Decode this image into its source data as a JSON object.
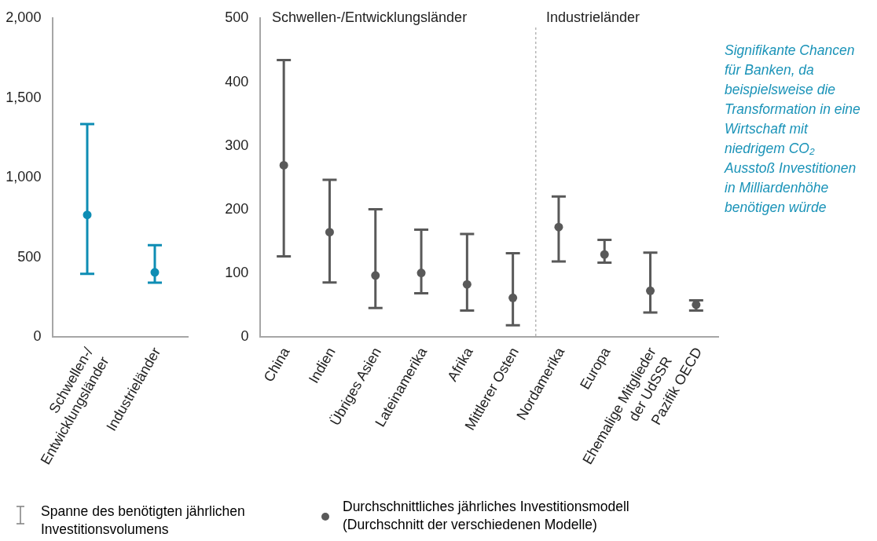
{
  "chart_data": [
    {
      "type": "scatter",
      "categories": [
        "Schwellen-/\nEntwicklungsländer",
        "Industrieländer"
      ],
      "marker": "circle",
      "grid": false,
      "series": [
        {
          "color": "#0e8db4",
          "values": [
            760,
            400
          ],
          "errors": [
            [
              390,
              1330
            ],
            [
              335,
              570
            ]
          ]
        }
      ],
      "ylim": [
        0,
        2000
      ],
      "yticks": [
        0,
        500,
        {
          "value": 1000,
          "label": "1,000"
        },
        {
          "value": 1500,
          "label": "1,500"
        },
        {
          "value": 2000,
          "label": "2,000"
        }
      ]
    },
    {
      "type": "scatter",
      "categories": [
        "China",
        "Indien",
        "Übriges Asien",
        "Lateinamerika",
        "Afrika",
        "Mittlerer Osten",
        "Nordamerika",
        "Europa",
        "Ehemalige Mitglieder\nder UdSSR",
        "Pazifik OECD"
      ],
      "marker": "circle",
      "grid": false,
      "series": [
        {
          "color": "#595959",
          "values": [
            268,
            163,
            95,
            99,
            81,
            60,
            171,
            128,
            71,
            49
          ],
          "errors": [
            [
              125,
              433
            ],
            [
              84,
              245
            ],
            [
              44,
              199
            ],
            [
              67,
              167
            ],
            [
              40,
              160
            ],
            [
              17,
              130
            ],
            [
              117,
              219
            ],
            [
              115,
              151
            ],
            [
              37,
              131
            ],
            [
              40,
              56
            ]
          ]
        }
      ],
      "ylim": [
        0,
        500
      ],
      "yticks": [
        0,
        100,
        200,
        300,
        400,
        500
      ],
      "annotations": [
        "Schwellen-/Entwicklungsländer",
        "Industrieländer",
        "Signifikante Chancen für Banken, da beispielsweise die Transformation in eine Wirtschaft mit niedrigem CO₂ Ausstoß Investitionen in Milliardenhöhe benötigen würde",
        "Spanne des benötigten jährlichen Investitionsvolumens",
        "Durchschnittliches jährliches Investitionsmodell (Durchschnitt der verschiedenen Modelle)"
      ]
    }
  ]
}
